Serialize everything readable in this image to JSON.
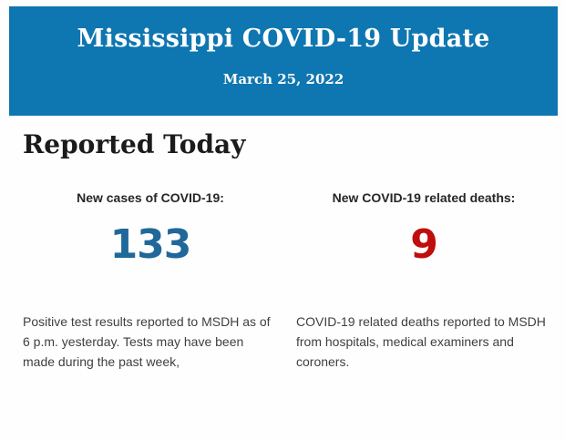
{
  "banner": {
    "title": "Mississippi COVID-19 Update",
    "date": "March 25, 2022",
    "background_color": "#0e76b1",
    "text_color": "#fdfdfd"
  },
  "main": {
    "heading": "Reported Today",
    "stats": [
      {
        "label": "New cases of COVID-19:",
        "value": "133",
        "value_color": "#20689a",
        "description": "Positive test results reported to MSDH as of 6 p.m. yesterday. Tests may have been made during the past week,"
      },
      {
        "label": "New COVID-19 related deaths:",
        "value": "9",
        "value_color": "#c00d0d",
        "description": "COVID-19 related deaths reported to MSDH from hospitals, medical examiners and coroners."
      }
    ]
  }
}
